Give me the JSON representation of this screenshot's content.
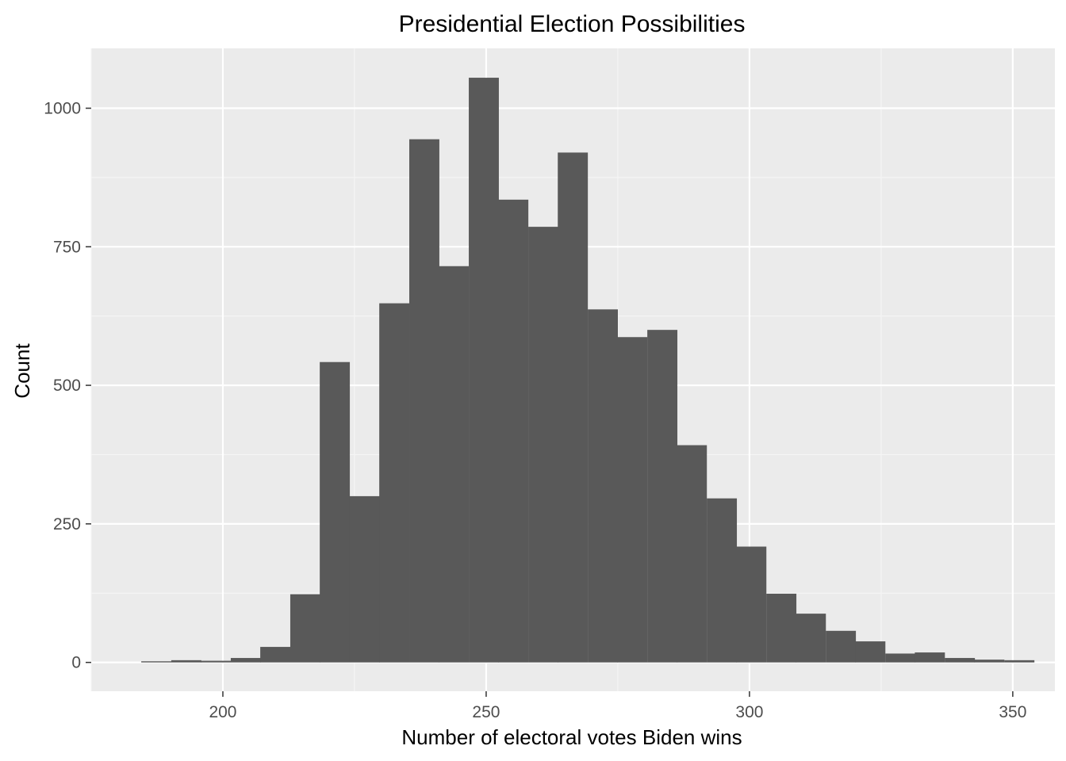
{
  "chart_data": {
    "type": "bar",
    "title": "Presidential Election Possibilities",
    "xlabel": "Number of electoral votes Biden wins",
    "ylabel": "Count",
    "xlim": [
      175,
      358
    ],
    "ylim": [
      -52,
      1108
    ],
    "x_ticks": [
      200,
      250,
      300,
      350
    ],
    "x_tick_labels": [
      "200",
      "250",
      "300",
      "350"
    ],
    "x_minor_ticks": [
      175,
      225,
      275,
      325
    ],
    "y_ticks": [
      0,
      250,
      500,
      750,
      1000
    ],
    "y_tick_labels": [
      "0",
      "250",
      "500",
      "750",
      "1000"
    ],
    "y_minor_ticks": [
      125,
      375,
      625,
      875
    ],
    "bin_width": 5.65,
    "bin_starts": [
      184.5,
      190.2,
      195.8,
      201.5,
      207.1,
      212.8,
      218.4,
      224.1,
      229.7,
      235.4,
      241.0,
      246.7,
      252.3,
      258.0,
      263.6,
      269.3,
      274.9,
      280.6,
      286.2,
      291.9,
      297.5,
      303.2,
      308.8,
      314.5,
      320.1,
      325.8,
      331.4,
      337.1,
      342.7,
      348.4
    ],
    "values": [
      2,
      4,
      3,
      8,
      28,
      123,
      542,
      300,
      648,
      944,
      715,
      1055,
      835,
      786,
      920,
      637,
      587,
      600,
      392,
      296,
      209,
      124,
      88,
      57,
      38,
      16,
      18,
      8,
      5,
      4
    ],
    "colors": {
      "panel": "#ebebeb",
      "grid_major": "#ffffff",
      "grid_minor": "#f5f5f5",
      "bar": "#595959",
      "tick": "#333333"
    },
    "grid": true,
    "legend": "none"
  }
}
